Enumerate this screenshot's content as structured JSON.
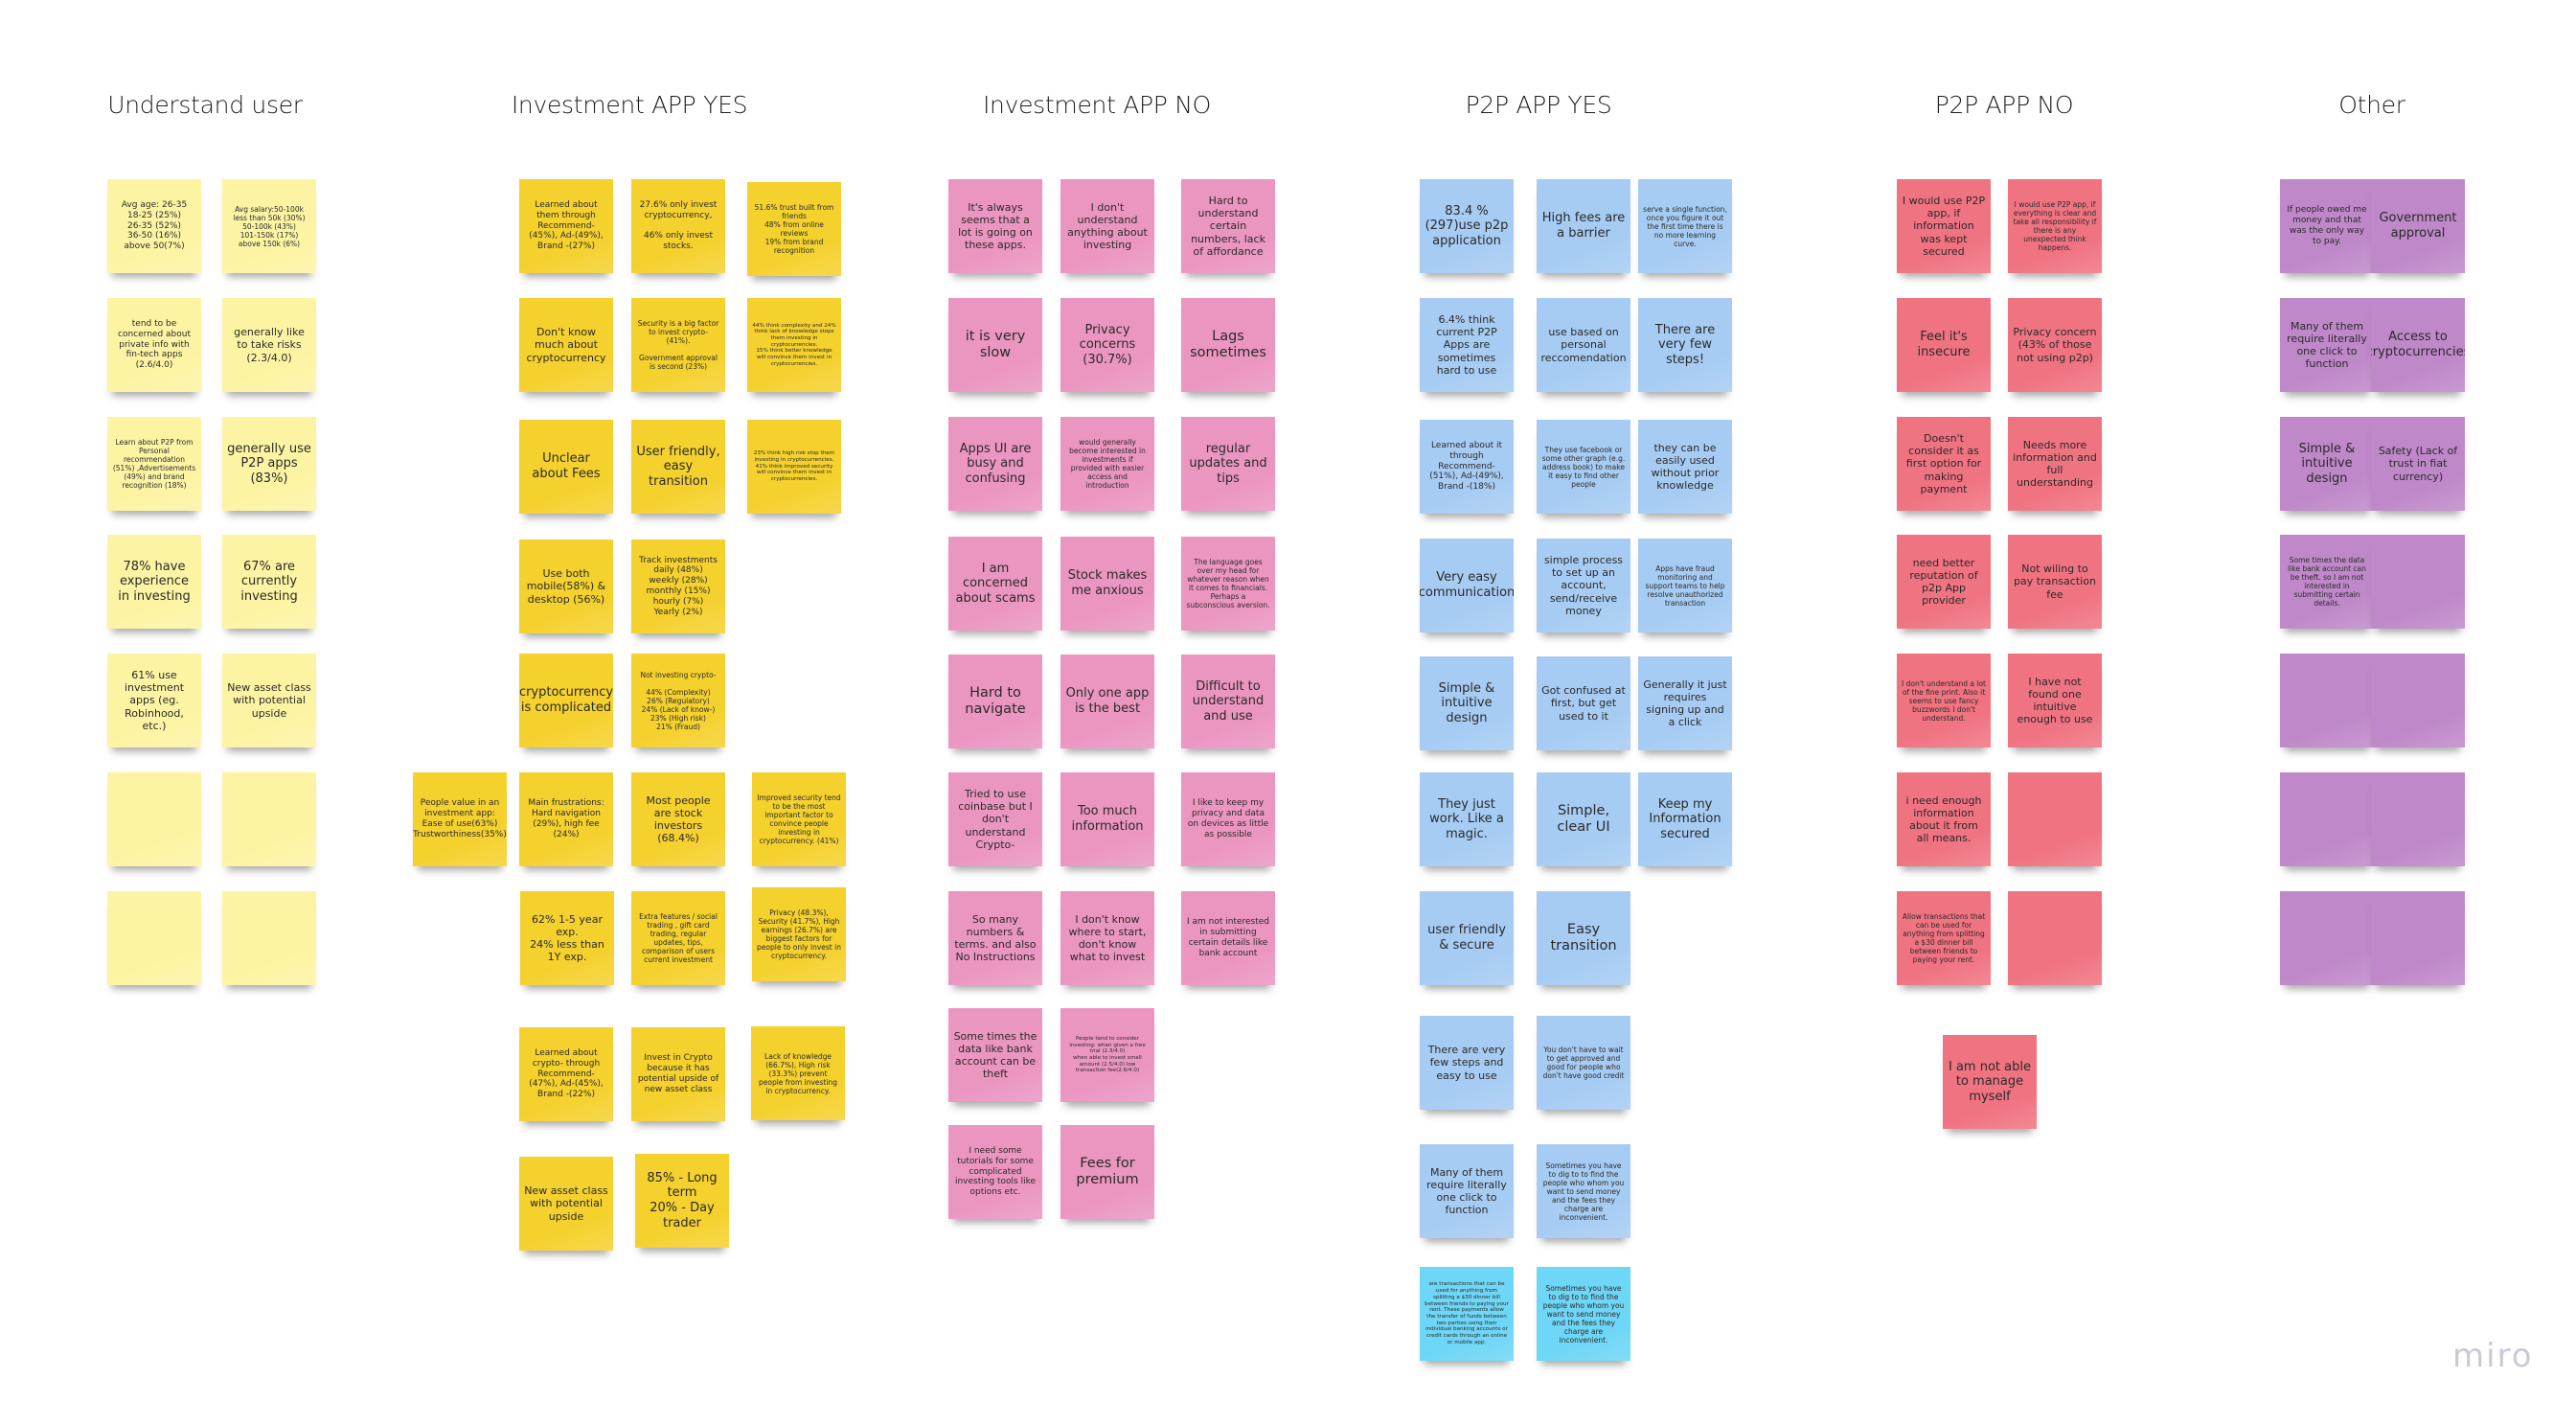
{
  "board": {
    "logo": "miro",
    "columns": [
      {
        "title": "Understand user",
        "color": "#fdf4a3",
        "notes": [
          "Avg age: 26-35\n18-25 (25%)\n26-35 (52%)\n36-50 (16%)\nabove 50(7%)",
          "Avg salary:50-100k\nless than 50k (30%)\n50-100k (43%)\n101-150k (17%)\nabove 150k (6%)",
          "tend to be concerned about private info with fin-tech apps (2.6/4.0)",
          "generally like to take risks (2.3/4.0)",
          "Learn about P2P from Personal recommendation (51%) ,Advertisements (49%) and brand recognition (18%)",
          "generally use P2P apps (83%)",
          "78% have experience in investing",
          "67% are currently investing",
          "61% use investment apps (eg. Robinhood, etc.)",
          "New asset class with potential upside",
          "",
          "",
          "",
          ""
        ]
      },
      {
        "title": "Investment APP YES",
        "color": "#f5d12e",
        "notes": [
          "Learned about them through Recommend-(45%), Ad-(49%), Brand -(27%)",
          "27.6% only invest cryptocurrency,\n\n46% only invest stocks.",
          "51.6% trust built from friends\n48% from online reviews\n19% from brand recognition",
          "Don't know much about cryptocurrency",
          "Security is a big factor to invest crypto- (41%).\n\nGovernment approval is second (23%)",
          "44% think complexity and 24% think lack of knowledge stops them investing in cryptocurrencies.\n15% think better knowledge will convince them invest in cryptocurrencies.",
          "Unclear about Fees",
          "User friendly, easy transition",
          "23% think high risk stop them investing in cryptocurrencies.\n41% think improved security will convince them invest in cryptocurrencies.",
          "Use both mobile(58%) & desktop (56%)",
          "Track investments daily (48%)\nweekly (28%)\nmonthly (15%)\nhourly (7%)\nYearly (2%)",
          "cryptocurrency is complicated",
          "Not investing crypto-\n\n44% (Complexity)\n26% (Regulatory)\n24% (Lack of know-)\n23% (High risk)\n21% (Fraud)",
          "People value in an investment app: Ease of use(63%) Trustworthiness(35%)",
          "Main frustrations:\nHard navigation (29%), high fee (24%)",
          "Most people are stock investors (68.4%)",
          "Improved security tend to be the most important factor to convince people investing in cryptocurrency. (41%)",
          "62% 1-5 year exp.\n24% less than 1Y exp.",
          "Extra features / social trading , gift card trading, regular updates, tips, comparison of users current investment",
          "Privacy (48.3%), Security (41.7%), High earnings (26.7%) are biggest factors for people to only invest in cryptocurrency.",
          "Learned about crypto- through Recommend-(47%), Ad-(45%), Brand -(22%)",
          "Invest in Crypto because it has potential upside of new asset class",
          "Lack of knowledge (66.7%), High risk (33.3%) prevent people from investing in cryptocurrency.",
          "New asset class with potential upside",
          "85% - Long term\n20% - Day trader"
        ]
      },
      {
        "title": "Investment APP NO",
        "color": "#eb96c1",
        "notes": [
          "It's always seems that a lot is going on these apps.",
          "I don't understand anything about investing",
          "Hard to understand certain numbers, lack of affordance",
          "it is very slow",
          "Privacy concerns (30.7%)",
          "Lags sometimes",
          "Apps UI are busy and confusing",
          "would generally become interested in investments if provided with easier access and introduction",
          "regular updates and tips",
          "I am concerned about scams",
          "Stock makes me anxious",
          "The language goes over my head for whatever reason when it comes to financials. Perhaps a subconscious aversion.",
          "Hard to navigate",
          "Only one app is the best",
          "Difficult to understand and use",
          "Tried to use coinbase but I don't understand Crypto-",
          "Too much information",
          "I like to keep my privacy and data on devices as little as possible",
          "So many numbers & terms. and also No Instructions",
          "I don't know where to start, don't know what to invest",
          "I am not interested in submitting certain details like bank account",
          "Some times the data like bank account can be theft",
          "People tend to consider investing: when given a free trial (2.3/4.0)\nwhen able to invest small amount (2.5/4.0) low transaction fee(2.6/4.0)",
          "I need some tutorials for some complicated investing tools like options etc.",
          "Fees for premium"
        ]
      },
      {
        "title": "P2P APP YES",
        "color": "#a7ccf3",
        "accent_color": "#6ed6f6",
        "notes": [
          "83.4 % (297)use p2p application",
          "High fees are a barrier",
          "serve a single function, once you figure it out the first time there is no more learning curve.",
          "6.4% think current P2P Apps are sometimes hard to use",
          "use based on personal reccomendation",
          "There are very few steps!",
          "Learned about it through Recommend-(51%), Ad-(49%), Brand -(18%)",
          "They use facebook or some other graph (e.g. address book) to make it easy to find other people",
          "they can be easily used without prior knowledge",
          "Very easy communication",
          "simple process to set up an account, send/receive money",
          "Apps have fraud monitoring and support teams to help resolve unauthorized transaction",
          "Simple & intuitive design",
          "Got confused at first, but get used to it",
          "Generally it just requires signing up and a click",
          "They just work. Like a magic.",
          "Simple, clear UI",
          "Keep my Information secured",
          "user friendly & secure",
          "Easy transition",
          "There are very few steps and easy to use",
          "You don't have to wait to get approved and good for people who don't have good credit",
          "Many of them require literally one click to function",
          "Sometimes you have to dig to to find the people who whom you want to send money and the fees they charge are inconvenient.",
          "are transactions that can be used for anything from splitting a $30 dinner bill between friends to paying your rent. These payments allow the transfer of funds between two parties using their individual banking accounts or credit cards through an online or mobile app.",
          "Sometimes you have to dig to to find the people who whom you want to send money and the fees they charge are inconvenient."
        ]
      },
      {
        "title": "P2P APP NO",
        "color": "#f07381",
        "notes": [
          "I would use P2P app, if information was kept secured",
          "I would use P2P app, if everything is clear and take all responsibility if there is any unexpected think happens.",
          "Feel it's insecure",
          "Privacy concern (43% of those not using p2p)",
          "Doesn't consider it as first option for making payment",
          "Needs more information and full understanding",
          "need better reputation of p2p App provider",
          "Not wiling to pay transaction fee",
          "I don't understand a lot of the fine print. Also it seems to use fancy buzzwords I don't understand.",
          "I have not found one intuitive enough to use",
          "i need enough information about it from all means.",
          "",
          "Allow transactions that can be used for anything from splitting a $30 dinner bill between friends to paying your rent.",
          "",
          "I am not able to manage myself"
        ]
      },
      {
        "title": "Other",
        "color": "#bf88c9",
        "notes": [
          "If people owed me money and that was the only way to pay.",
          "Government approval",
          "Many of them require literally one click to function",
          "Access to cryptocurrencies",
          "Simple & intuitive design",
          "Safety (Lack of trust in fiat currency)",
          "Some times the data like bank account can be theft. so I am not interested in submitting certain details.",
          "",
          "",
          "",
          "",
          "",
          "",
          ""
        ]
      }
    ]
  }
}
